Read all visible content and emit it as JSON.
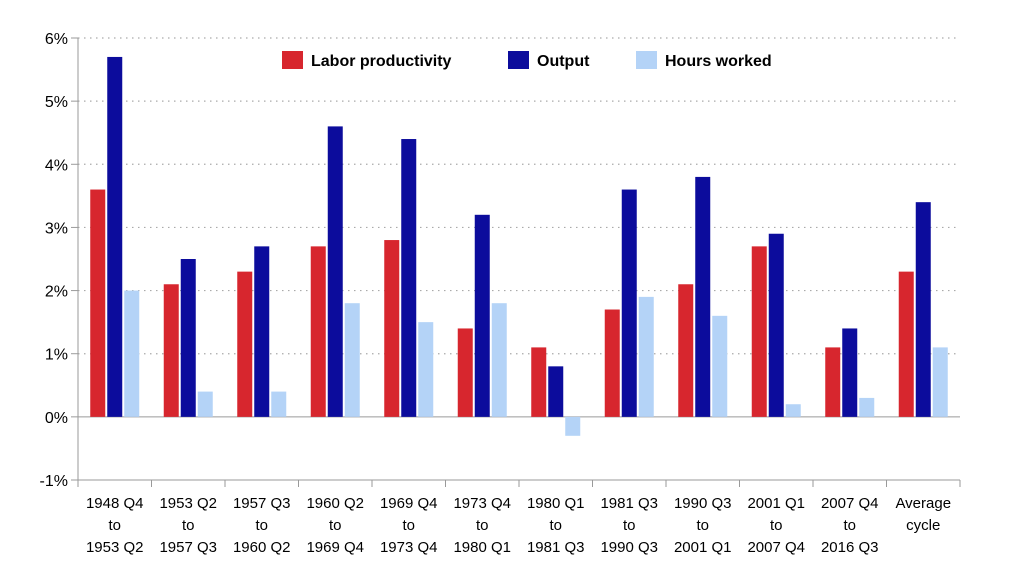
{
  "chart_data": {
    "type": "bar",
    "title": "",
    "xlabel": "",
    "ylabel": "",
    "ylim": [
      -1,
      6
    ],
    "yticks": [
      "-1%",
      "0%",
      "1%",
      "2%",
      "3%",
      "4%",
      "5%",
      "6%"
    ],
    "grid": true,
    "legend_position": "top-center",
    "categories": [
      [
        "1948 Q4",
        "to",
        "1953 Q2"
      ],
      [
        "1953 Q2",
        "to",
        "1957 Q3"
      ],
      [
        "1957 Q3",
        "to",
        "1960 Q2"
      ],
      [
        "1960 Q2",
        "to",
        "1969 Q4"
      ],
      [
        "1969 Q4",
        "to",
        "1973 Q4"
      ],
      [
        "1973 Q4",
        "to",
        "1980 Q1"
      ],
      [
        "1980 Q1",
        "to",
        "1981 Q3"
      ],
      [
        "1981 Q3",
        "to",
        "1990 Q3"
      ],
      [
        "1990 Q3",
        "to",
        "2001 Q1"
      ],
      [
        "2001 Q1",
        "to",
        "2007 Q4"
      ],
      [
        "2007 Q4",
        "to",
        "2016 Q3"
      ],
      [
        "Average",
        "cycle"
      ]
    ],
    "series": [
      {
        "name": "Labor productivity",
        "color": "#d7262e",
        "values": [
          3.6,
          2.1,
          2.3,
          2.7,
          2.8,
          1.4,
          1.1,
          1.7,
          2.1,
          2.7,
          1.1,
          2.3
        ]
      },
      {
        "name": "Output",
        "color": "#0c0c9c",
        "values": [
          5.7,
          2.5,
          2.7,
          4.6,
          4.4,
          3.2,
          0.8,
          3.6,
          3.8,
          2.9,
          1.4,
          3.4
        ]
      },
      {
        "name": "Hours worked",
        "color": "#b4d3f7",
        "values": [
          2.0,
          0.4,
          0.4,
          1.8,
          1.5,
          1.8,
          -0.3,
          1.9,
          1.6,
          0.2,
          0.3,
          1.1
        ]
      }
    ]
  }
}
